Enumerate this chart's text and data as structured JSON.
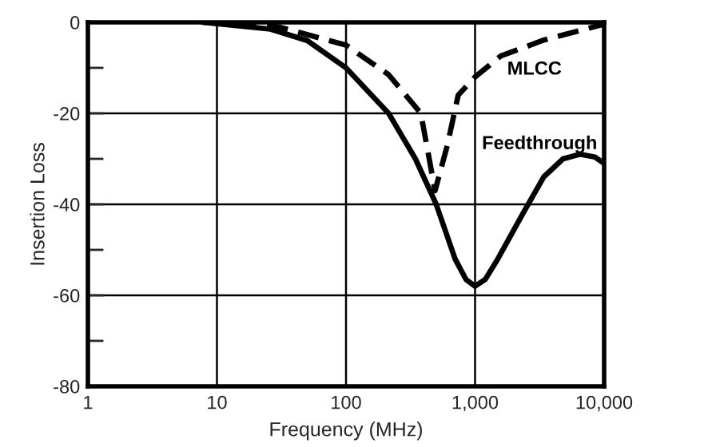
{
  "chart_data": {
    "type": "line",
    "xlabel": "Frequency (MHz)",
    "ylabel": "Insertion Loss",
    "log": "x",
    "grid": true,
    "legend": false,
    "xlim": [
      1,
      10000
    ],
    "xticks": [
      1,
      10,
      100,
      {
        "value": 1000,
        "label": "1,000"
      },
      {
        "value": 10000,
        "label": "10,000"
      }
    ],
    "ylim": [
      -80,
      0
    ],
    "yticks": [
      0,
      {
        "value": -10,
        "label": null
      },
      -20,
      {
        "value": -30,
        "label": null
      },
      -40,
      {
        "value": -50,
        "label": null
      },
      -60,
      {
        "value": -70,
        "label": null
      },
      -80
    ],
    "series": [
      {
        "name": "MLCC",
        "color": "#000000",
        "line_style": "dashed",
        "x": [
          7.8,
          10,
          30,
          100,
          214,
          380,
          490,
          610,
          740,
          1000,
          1580,
          3400,
          10000
        ],
        "values": [
          0,
          -0.1,
          -1,
          -5,
          -11.5,
          -20,
          -37,
          -27,
          -16,
          -12,
          -7.4,
          -3.9,
          -0.4
        ]
      },
      {
        "name": "Feedthrough",
        "color": "#000000",
        "line_style": "solid",
        "x": [
          7.8,
          10,
          26,
          50,
          100,
          214,
          345,
          500,
          700,
          850,
          1000,
          1200,
          1500,
          2350,
          3400,
          4800,
          6500,
          8500,
          10000
        ],
        "values": [
          0,
          -0.3,
          -1.5,
          -4,
          -10,
          -20,
          -30,
          -40,
          -52,
          -56.5,
          -58,
          -56.5,
          -52,
          -42,
          -34,
          -30,
          -29,
          -29.6,
          -31
        ]
      }
    ]
  }
}
